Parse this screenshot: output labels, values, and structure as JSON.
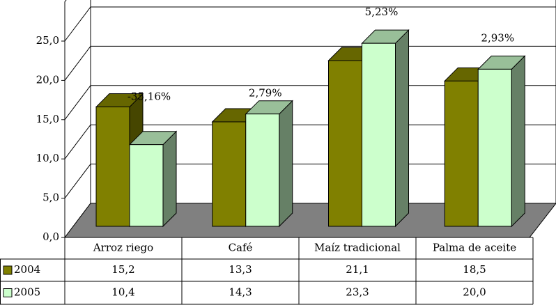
{
  "chart_data": {
    "type": "bar3d",
    "categories": [
      "Arroz riego",
      "Café",
      "Maíz tradicional",
      "Palma de aceite"
    ],
    "series": [
      {
        "name": "2004",
        "color": "#808000",
        "values": [
          15.2,
          13.3,
          21.1,
          18.5
        ],
        "value_labels": [
          "15,2",
          "13,3",
          "21,1",
          "18,5"
        ]
      },
      {
        "name": "2005",
        "color": "#ccffcc",
        "values": [
          10.4,
          14.3,
          23.3,
          20.0
        ],
        "value_labels": [
          "10,4",
          "14,3",
          "23,3",
          "20,0"
        ]
      }
    ],
    "annotations": [
      "-35,16%",
      "2,79%",
      "5,23%",
      "2,93%"
    ],
    "ylim": [
      0,
      30
    ],
    "yticks": [
      {
        "value": 0,
        "label": "0,0"
      },
      {
        "value": 5,
        "label": "5,0"
      },
      {
        "value": 10,
        "label": "10,0"
      },
      {
        "value": 15,
        "label": "15,0"
      },
      {
        "value": 20,
        "label": "20,0"
      },
      {
        "value": 25,
        "label": "25,0"
      }
    ],
    "grid": true,
    "data_table": true
  }
}
